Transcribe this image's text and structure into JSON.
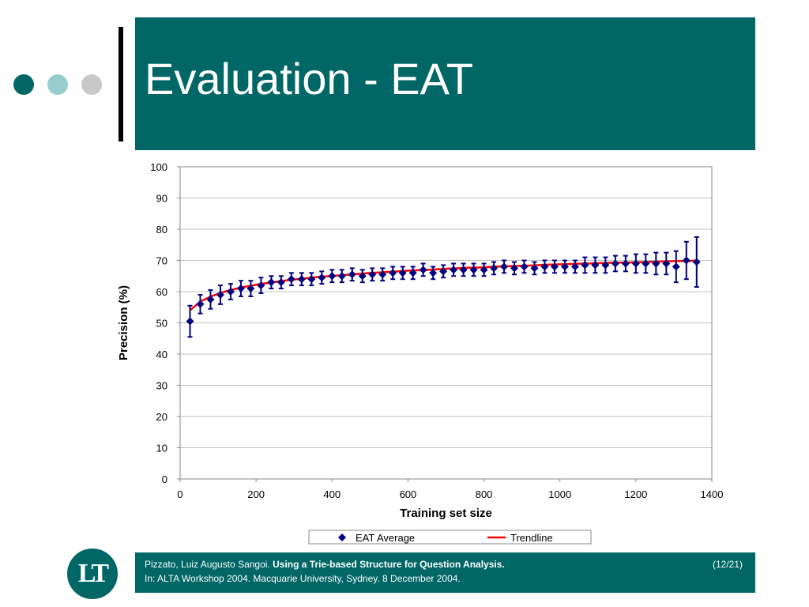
{
  "slide": {
    "title": "Evaluation - EAT",
    "footer": {
      "authors": "Pizzato, Luiz Augusto Sangoi.",
      "paper_title": "Using a Trie-based Structure for Question Analysis.",
      "venue": "In: ALTA Workshop 2004. Macquarie University, Sydney. 8 December 2004.",
      "page": "(12/21)"
    },
    "logo_text": "LT",
    "colors": {
      "brand": "#006666",
      "dot_light": "#99cccc",
      "dot_gray": "#c8c8c8"
    }
  },
  "chart_data": {
    "type": "scatter",
    "title": "",
    "xlabel": "Training set size",
    "ylabel": "Precision (%)",
    "xlim": [
      0,
      1400
    ],
    "ylim": [
      0,
      100
    ],
    "xticks": [
      0,
      200,
      400,
      600,
      800,
      1000,
      1200,
      1400
    ],
    "yticks": [
      0,
      10,
      20,
      30,
      40,
      50,
      60,
      70,
      80,
      90,
      100
    ],
    "grid": "horizontal",
    "legend": {
      "placement": "bottom",
      "entries": [
        "EAT Average",
        "Trendline"
      ]
    },
    "series": [
      {
        "name": "EAT Average",
        "color": "#000080",
        "marker": "diamond",
        "x": [
          26,
          53,
          80,
          106,
          133,
          160,
          186,
          213,
          240,
          266,
          293,
          320,
          346,
          373,
          400,
          426,
          453,
          480,
          506,
          533,
          560,
          586,
          613,
          640,
          666,
          693,
          720,
          746,
          773,
          800,
          826,
          853,
          880,
          906,
          933,
          960,
          986,
          1013,
          1040,
          1066,
          1093,
          1120,
          1146,
          1173,
          1200,
          1226,
          1253,
          1280,
          1306,
          1333,
          1360
        ],
        "y": [
          50.5,
          56,
          57.5,
          59,
          60,
          61,
          61,
          62,
          63,
          63,
          64,
          64,
          64,
          64.5,
          65,
          65,
          65.5,
          65,
          65.5,
          65.5,
          66,
          66,
          66,
          67,
          66,
          66.5,
          67,
          67,
          67,
          67,
          67.5,
          68,
          67.5,
          68,
          67.5,
          68,
          68,
          68,
          68,
          68.5,
          68.5,
          68.5,
          69,
          69,
          69,
          69,
          69,
          69,
          68,
          70,
          69.5
        ],
        "err": [
          5,
          3,
          3,
          3,
          2.5,
          2.5,
          2.5,
          2.5,
          2,
          2,
          2,
          2,
          2,
          2,
          2,
          2,
          2,
          2,
          2,
          2,
          2,
          2,
          2,
          2,
          2,
          2,
          2,
          2,
          2,
          2,
          2,
          2,
          2,
          2,
          2,
          2,
          2,
          2,
          2,
          2.5,
          2.5,
          2.5,
          2.5,
          2.5,
          3,
          3,
          3.5,
          3.5,
          5,
          6,
          8
        ]
      },
      {
        "name": "Trendline",
        "color": "#ff0000",
        "type": "log",
        "x": [
          26,
          53,
          80,
          106,
          133,
          160,
          186,
          213,
          240,
          266,
          293,
          320,
          346,
          373,
          400,
          426,
          453,
          480,
          506,
          533,
          560,
          586,
          613,
          640,
          666,
          693,
          720,
          746,
          773,
          800,
          826,
          853,
          880,
          906,
          933,
          960,
          986,
          1013,
          1040,
          1066,
          1093,
          1120,
          1146,
          1173,
          1200,
          1226,
          1253,
          1280,
          1306,
          1333,
          1360
        ],
        "y": [
          54,
          56.8,
          58.4,
          59.6,
          60.5,
          61.3,
          61.9,
          62.5,
          62.9,
          63.4,
          63.8,
          64.1,
          64.5,
          64.8,
          65,
          65.3,
          65.5,
          65.8,
          66,
          66.2,
          66.4,
          66.6,
          66.8,
          66.9,
          67.1,
          67.3,
          67.4,
          67.6,
          67.7,
          67.8,
          68,
          68.1,
          68.2,
          68.3,
          68.4,
          68.6,
          68.7,
          68.8,
          68.9,
          69,
          69.1,
          69.2,
          69.3,
          69.3,
          69.4,
          69.5,
          69.6,
          69.7,
          69.8,
          69.8,
          69.9
        ]
      }
    ]
  }
}
